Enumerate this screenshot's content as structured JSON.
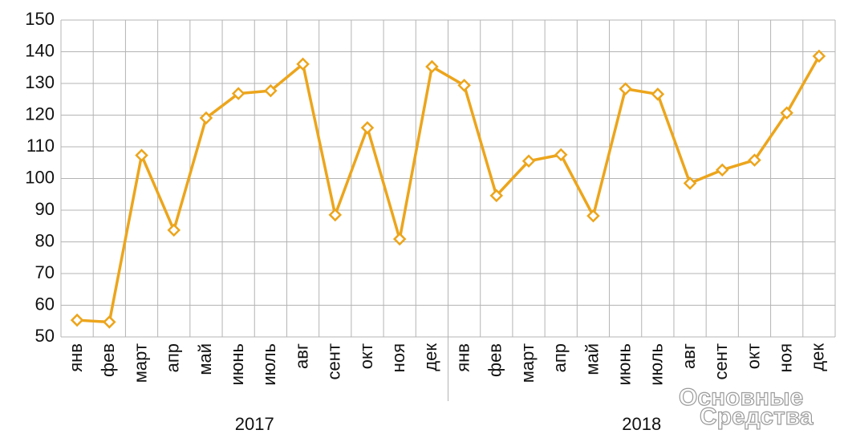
{
  "chart_data": {
    "type": "line",
    "categories": [
      "янв",
      "фев",
      "март",
      "апр",
      "май",
      "июнь",
      "июль",
      "авг",
      "сент",
      "окт",
      "ноя",
      "дек",
      "янв",
      "фев",
      "март",
      "апр",
      "май",
      "июнь",
      "июль",
      "авг",
      "сент",
      "окт",
      "ноя",
      "дек"
    ],
    "groups": [
      "2017",
      "2018"
    ],
    "series": [
      {
        "color": "#eca51c",
        "values": [
          55.3,
          54.7,
          107.3,
          83.7,
          119.1,
          126.8,
          127.7,
          136.1,
          88.5,
          116,
          80.9,
          135.3,
          129.4,
          94.6,
          105.5,
          107.5,
          88.2,
          128.3,
          126.6,
          98.5,
          102.7,
          105.8,
          120.7,
          138.6
        ]
      }
    ],
    "ylim": [
      50,
      150
    ],
    "yticks": [
      50,
      60,
      70,
      80,
      90,
      100,
      110,
      120,
      130,
      140,
      150
    ],
    "grid": true,
    "watermark": [
      "Основные",
      "Средства"
    ]
  }
}
